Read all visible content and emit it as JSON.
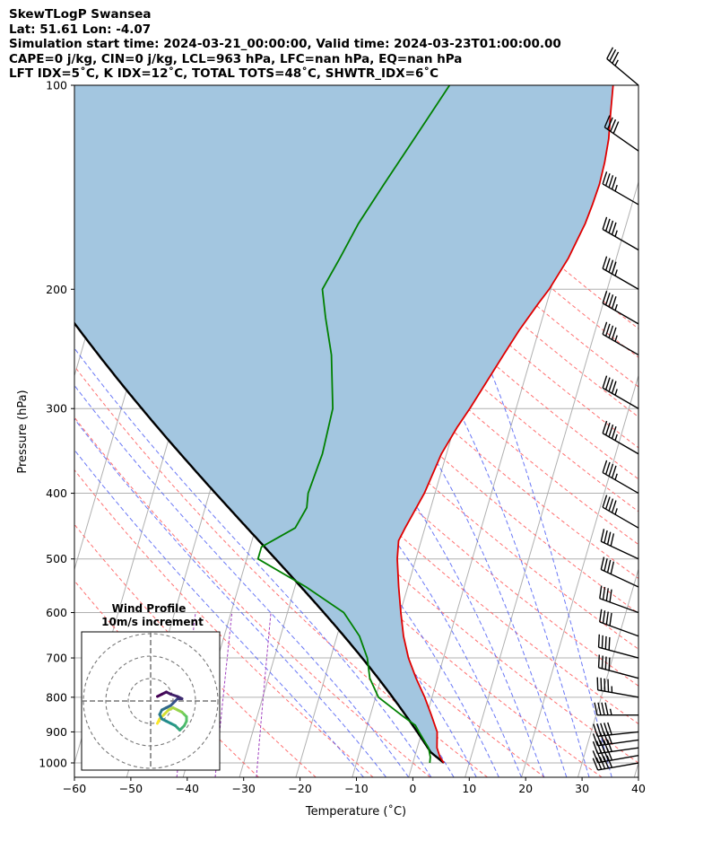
{
  "header": {
    "line1": "SkewTLogP Swansea",
    "line2": "Lat: 51.61   Lon: -4.07",
    "line3": "Simulation start time: 2024-03-21_00:00:00, Valid time: 2024-03-23T01:00:00.00",
    "line4": "CAPE=0 j/kg, CIN=0 j/kg, LCL=963 hPa, LFC=nan hPa, EQ=nan hPa",
    "line5": "LFT IDX=5˚C, K IDX=12˚C, TOTAL TOTS=48˚C, SHWTR_IDX=6˚C"
  },
  "chart_data": [
    {
      "type": "line",
      "subtype": "skew-t log-p",
      "xlabel": "Temperature (˚C)",
      "ylabel": "Pressure (hPa)",
      "xlim": [
        -60,
        40
      ],
      "ylim": [
        1050,
        100
      ],
      "y_scale": "log",
      "x_ticks": [
        "−60",
        "−50",
        "−40",
        "−30",
        "−20",
        "−10",
        "0",
        "10",
        "20",
        "30",
        "40"
      ],
      "y_ticks": [
        "100",
        "200",
        "300",
        "400",
        "500",
        "600",
        "700",
        "800",
        "900",
        "1000"
      ],
      "grid": true,
      "skew_per_log_unit": 35,
      "series": [
        {
          "role": "temperature",
          "color": "#e00000",
          "points": [
            [
              1000,
              5.5
            ],
            [
              980,
              4.5
            ],
            [
              950,
              3.5
            ],
            [
              900,
              2.7
            ],
            [
              850,
              0.8
            ],
            [
              800,
              -1.3
            ],
            [
              750,
              -3.8
            ],
            [
              700,
              -6.2
            ],
            [
              650,
              -8.2
            ],
            [
              600,
              -9.9
            ],
            [
              550,
              -11.6
            ],
            [
              500,
              -13.3
            ],
            [
              470,
              -14.0
            ],
            [
              450,
              -13.5
            ],
            [
              400,
              -11.9
            ],
            [
              350,
              -10.9
            ],
            [
              320,
              -9.5
            ],
            [
              300,
              -8.2
            ],
            [
              280,
              -7.0
            ],
            [
              250,
              -5.0
            ],
            [
              230,
              -3.5
            ],
            [
              210,
              -1.5
            ],
            [
              200,
              -0.3
            ],
            [
              180,
              1.5
            ],
            [
              160,
              2.7
            ],
            [
              150,
              3.0
            ],
            [
              140,
              3.2
            ],
            [
              130,
              3.0
            ],
            [
              120,
              2.5
            ],
            [
              110,
              1.5
            ],
            [
              100,
              0.5
            ]
          ]
        },
        {
          "role": "dewpoint",
          "color": "#008000",
          "points": [
            [
              1000,
              3.0
            ],
            [
              980,
              2.8
            ],
            [
              950,
              2.0
            ],
            [
              920,
              0.5
            ],
            [
              900,
              -0.5
            ],
            [
              880,
              -1.5
            ],
            [
              850,
              -4.5
            ],
            [
              800,
              -9.5
            ],
            [
              750,
              -12.0
            ],
            [
              700,
              -13.5
            ],
            [
              650,
              -16.0
            ],
            [
              600,
              -20.0
            ],
            [
              550,
              -28.0
            ],
            [
              500,
              -38.0
            ],
            [
              480,
              -38.0
            ],
            [
              450,
              -33.0
            ],
            [
              420,
              -32.0
            ],
            [
              400,
              -32.5
            ],
            [
              350,
              -32.0
            ],
            [
              300,
              -32.5
            ],
            [
              250,
              -35.5
            ],
            [
              220,
              -38.5
            ],
            [
              200,
              -40.5
            ],
            [
              180,
              -39.0
            ],
            [
              160,
              -37.5
            ],
            [
              140,
              -35.0
            ],
            [
              120,
              -32.0
            ],
            [
              100,
              -28.5
            ]
          ]
        },
        {
          "role": "parcel",
          "color": "#000000"
        }
      ],
      "annotations": {
        "cin_cape_fill": "#a3c6e0",
        "dry_adiabat_color": "#ff6060",
        "moist_adiabat_color": "#4f5ff5",
        "mixing_ratio_color": "#a040c0"
      },
      "wind_barbs": {
        "color": "#000000",
        "levels": [
          {
            "p": 1000,
            "speed": 50,
            "dir": 260
          },
          {
            "p": 975,
            "speed": 50,
            "dir": 260
          },
          {
            "p": 950,
            "speed": 50,
            "dir": 262
          },
          {
            "p": 925,
            "speed": 50,
            "dir": 262
          },
          {
            "p": 900,
            "speed": 50,
            "dir": 264
          },
          {
            "p": 850,
            "speed": 45,
            "dir": 270
          },
          {
            "p": 800,
            "speed": 45,
            "dir": 280
          },
          {
            "p": 750,
            "speed": 40,
            "dir": 285
          },
          {
            "p": 700,
            "speed": 40,
            "dir": 285
          },
          {
            "p": 650,
            "speed": 40,
            "dir": 290
          },
          {
            "p": 600,
            "speed": 40,
            "dir": 290
          },
          {
            "p": 550,
            "speed": 40,
            "dir": 295
          },
          {
            "p": 500,
            "speed": 40,
            "dir": 295
          },
          {
            "p": 450,
            "speed": 45,
            "dir": 300
          },
          {
            "p": 400,
            "speed": 45,
            "dir": 300
          },
          {
            "p": 350,
            "speed": 45,
            "dir": 300
          },
          {
            "p": 300,
            "speed": 45,
            "dir": 300
          },
          {
            "p": 250,
            "speed": 45,
            "dir": 300
          },
          {
            "p": 225,
            "speed": 45,
            "dir": 300
          },
          {
            "p": 200,
            "speed": 45,
            "dir": 300
          },
          {
            "p": 175,
            "speed": 45,
            "dir": 300
          },
          {
            "p": 150,
            "speed": 45,
            "dir": 300
          },
          {
            "p": 125,
            "speed": 40,
            "dir": 305
          },
          {
            "p": 100,
            "speed": 35,
            "dir": 310
          }
        ]
      }
    },
    {
      "type": "line",
      "subtype": "hodograph",
      "title": "Wind Profile",
      "subtitle": "10m/s increment",
      "rings_ms": [
        10,
        20,
        30
      ],
      "colormap": "viridis",
      "points_uv": [
        [
          3,
          -10
        ],
        [
          4,
          -8
        ],
        [
          6,
          -6
        ],
        [
          8,
          -4
        ],
        [
          10,
          -3
        ],
        [
          12,
          -4
        ],
        [
          14,
          -5
        ],
        [
          15,
          -6
        ],
        [
          16,
          -7
        ],
        [
          16,
          -9
        ],
        [
          15,
          -11
        ],
        [
          14,
          -12
        ],
        [
          13,
          -13
        ],
        [
          12,
          -12
        ],
        [
          11,
          -11
        ],
        [
          9,
          -10
        ],
        [
          7,
          -9
        ],
        [
          5,
          -8
        ],
        [
          4,
          -6
        ],
        [
          5,
          -4
        ],
        [
          7,
          -3
        ],
        [
          9,
          -2
        ],
        [
          10,
          -1
        ],
        [
          11,
          0
        ],
        [
          12,
          1
        ],
        [
          13,
          1
        ],
        [
          14,
          1
        ],
        [
          12,
          2
        ],
        [
          9,
          3
        ],
        [
          7,
          4
        ],
        [
          5,
          3
        ],
        [
          3,
          2
        ]
      ]
    }
  ]
}
